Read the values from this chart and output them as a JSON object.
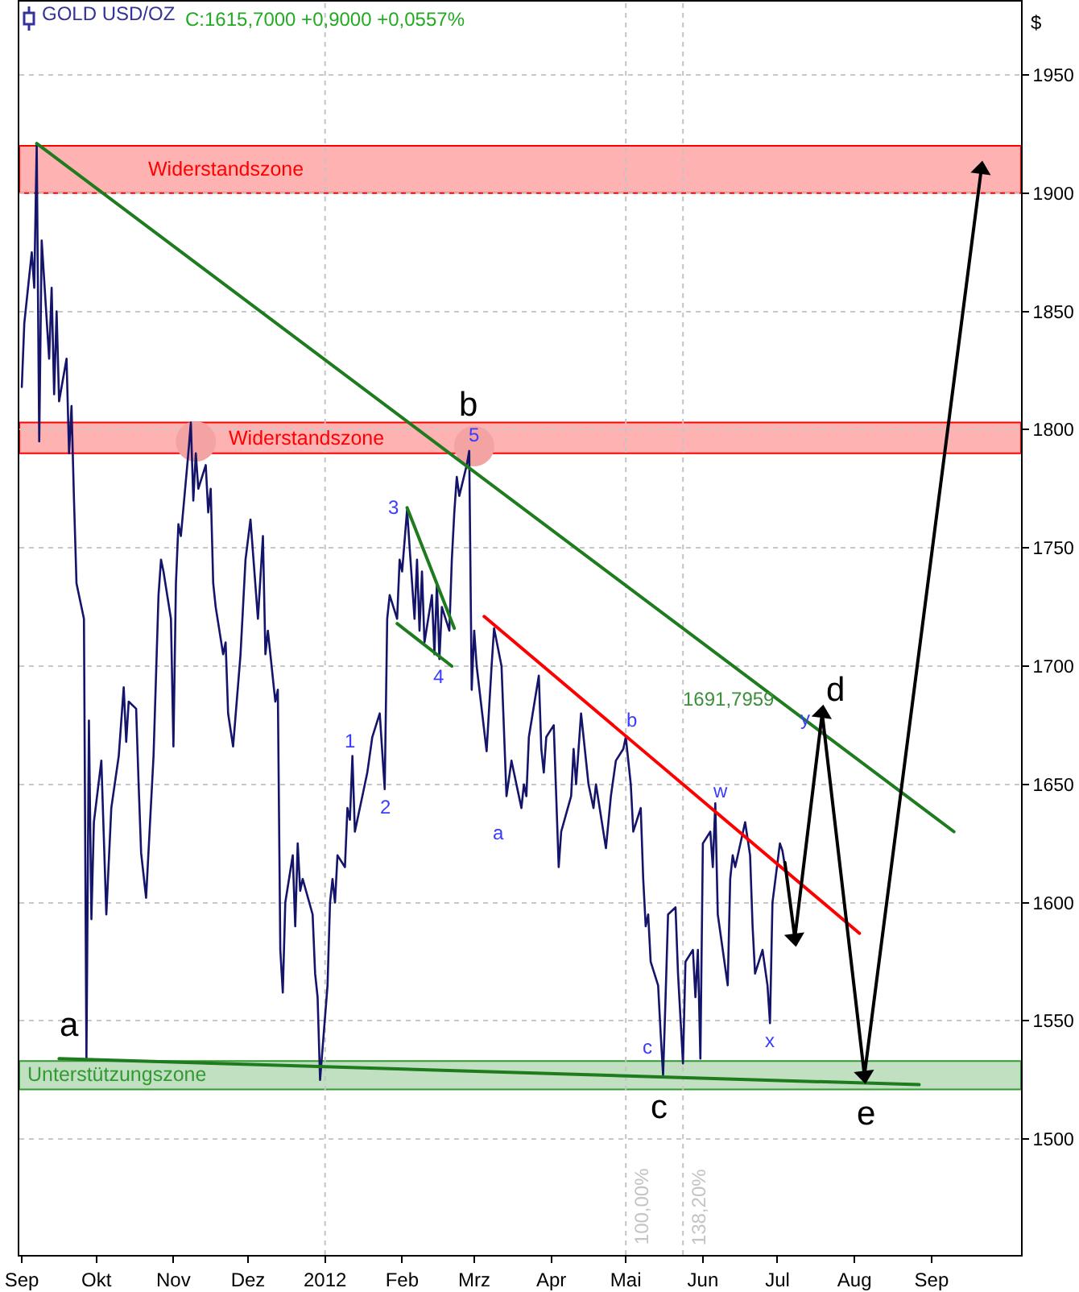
{
  "chart_data": {
    "type": "line",
    "title": "GOLD USD/OZ",
    "subtitle": "C:1615,7000 +0,9000 +0,0557%",
    "ylabel": "$",
    "xlim": [
      "2011-08-31",
      "2012-10-07"
    ],
    "xticks": [
      {
        "value": "2011-09-01",
        "label": "Sep"
      },
      {
        "value": "2011-10-01",
        "label": "Okt"
      },
      {
        "value": "2011-11-01",
        "label": "Nov"
      },
      {
        "value": "2011-12-01",
        "label": "Dez"
      },
      {
        "value": "2012-01-01",
        "label": "2012"
      },
      {
        "value": "2012-02-01",
        "label": "Feb"
      },
      {
        "value": "2012-03-01",
        "label": "Mrz"
      },
      {
        "value": "2012-04-01",
        "label": "Apr"
      },
      {
        "value": "2012-05-01",
        "label": "Mai"
      },
      {
        "value": "2012-06-01",
        "label": "Jun"
      },
      {
        "value": "2012-07-01",
        "label": "Jul"
      },
      {
        "value": "2012-08-01",
        "label": "Aug"
      },
      {
        "value": "2012-09-01",
        "label": "Sep"
      }
    ],
    "ylim": [
      1451,
      1981
    ],
    "yticks": [
      1500,
      1550,
      1600,
      1650,
      1700,
      1750,
      1800,
      1850,
      1900,
      1950
    ],
    "grid": "y",
    "series": [
      {
        "type": "scatter",
        "marker": "circle",
        "color": "#f4a3a3",
        "x": [
          "2011-11-10",
          "2012-03-01"
        ],
        "values": [
          1795,
          1793
        ]
      },
      {
        "color": "#14146b",
        "x": [
          "2011-09-01",
          "2011-09-02",
          "2011-09-05",
          "2011-09-06",
          "2011-09-07",
          "2011-09-08",
          "2011-09-09",
          "2011-09-12",
          "2011-09-13",
          "2011-09-14",
          "2011-09-15",
          "2011-09-16",
          "2011-09-19",
          "2011-09-20",
          "2011-09-21",
          "2011-09-22",
          "2011-09-23",
          "2011-09-26",
          "2011-09-27",
          "2011-09-28",
          "2011-09-29",
          "2011-09-30",
          "2011-10-03",
          "2011-10-05",
          "2011-10-07",
          "2011-10-10",
          "2011-10-12",
          "2011-10-13",
          "2011-10-14",
          "2011-10-17",
          "2011-10-18",
          "2011-10-19",
          "2011-10-21",
          "2011-10-24",
          "2011-10-26",
          "2011-10-27",
          "2011-10-28",
          "2011-10-31",
          "2011-11-01",
          "2011-11-02",
          "2011-11-03",
          "2011-11-04",
          "2011-11-07",
          "2011-11-08",
          "2011-11-09",
          "2011-11-10",
          "2011-11-11",
          "2011-11-14",
          "2011-11-15",
          "2011-11-16",
          "2011-11-17",
          "2011-11-18",
          "2011-11-21",
          "2011-11-22",
          "2011-11-23",
          "2011-11-25",
          "2011-11-28",
          "2011-11-30",
          "2011-12-02",
          "2011-12-05",
          "2011-12-07",
          "2011-12-08",
          "2011-12-09",
          "2011-12-12",
          "2011-12-13",
          "2011-12-14",
          "2011-12-15",
          "2011-12-16",
          "2011-12-19",
          "2011-12-20",
          "2011-12-21",
          "2011-12-22",
          "2011-12-23",
          "2011-12-27",
          "2011-12-28",
          "2011-12-29",
          "2011-12-30",
          "2012-01-02",
          "2012-01-03",
          "2012-01-04",
          "2012-01-05",
          "2012-01-06",
          "2012-01-09",
          "2012-01-10",
          "2012-01-11",
          "2012-01-12",
          "2012-01-13",
          "2012-01-16",
          "2012-01-18",
          "2012-01-20",
          "2012-01-23",
          "2012-01-25",
          "2012-01-26",
          "2012-01-27",
          "2012-01-30",
          "2012-01-31",
          "2012-02-01",
          "2012-02-03",
          "2012-02-06",
          "2012-02-07",
          "2012-02-08",
          "2012-02-09",
          "2012-02-10",
          "2012-02-13",
          "2012-02-14",
          "2012-02-15",
          "2012-02-16",
          "2012-02-17",
          "2012-02-20",
          "2012-02-21",
          "2012-02-22",
          "2012-02-23",
          "2012-02-24",
          "2012-02-27",
          "2012-02-28",
          "2012-02-29",
          "2012-03-01",
          "2012-03-02",
          "2012-03-06",
          "2012-03-08",
          "2012-03-09",
          "2012-03-12",
          "2012-03-14",
          "2012-03-16",
          "2012-03-20",
          "2012-03-21",
          "2012-03-22",
          "2012-03-23",
          "2012-03-27",
          "2012-03-28",
          "2012-03-29",
          "2012-03-30",
          "2012-04-02",
          "2012-04-04",
          "2012-04-05",
          "2012-04-09",
          "2012-04-10",
          "2012-04-11",
          "2012-04-13",
          "2012-04-16",
          "2012-04-18",
          "2012-04-19",
          "2012-04-23",
          "2012-04-25",
          "2012-04-27",
          "2012-04-30",
          "2012-05-01",
          "2012-05-03",
          "2012-05-04",
          "2012-05-07",
          "2012-05-08",
          "2012-05-09",
          "2012-05-10",
          "2012-05-11",
          "2012-05-14",
          "2012-05-15",
          "2012-05-16",
          "2012-05-17",
          "2012-05-18",
          "2012-05-21",
          "2012-05-22",
          "2012-05-24",
          "2012-05-25",
          "2012-05-28",
          "2012-05-29",
          "2012-05-30",
          "2012-05-31",
          "2012-06-01",
          "2012-06-04",
          "2012-06-05",
          "2012-06-06",
          "2012-06-07",
          "2012-06-11",
          "2012-06-12",
          "2012-06-13",
          "2012-06-14",
          "2012-06-18",
          "2012-06-20",
          "2012-06-21",
          "2012-06-22",
          "2012-06-25",
          "2012-06-27",
          "2012-06-28",
          "2012-06-29",
          "2012-07-02",
          "2012-07-03",
          "2012-07-04"
        ],
        "values": [
          1818,
          1845,
          1875,
          1860,
          1921,
          1795,
          1880,
          1830,
          1860,
          1815,
          1850,
          1812,
          1830,
          1790,
          1810,
          1770,
          1735,
          1720,
          1534,
          1677,
          1593,
          1634,
          1660,
          1595,
          1640,
          1662,
          1691,
          1668,
          1685,
          1682,
          1650,
          1621,
          1602,
          1662,
          1730,
          1745,
          1740,
          1720,
          1666,
          1735,
          1760,
          1755,
          1790,
          1803,
          1770,
          1790,
          1775,
          1785,
          1765,
          1775,
          1735,
          1725,
          1705,
          1710,
          1680,
          1666,
          1705,
          1745,
          1762,
          1720,
          1755,
          1705,
          1715,
          1685,
          1690,
          1580,
          1562,
          1600,
          1620,
          1590,
          1625,
          1605,
          1610,
          1595,
          1570,
          1560,
          1525,
          1565,
          1600,
          1610,
          1600,
          1620,
          1615,
          1640,
          1635,
          1662,
          1630,
          1645,
          1655,
          1670,
          1680,
          1648,
          1720,
          1730,
          1720,
          1745,
          1740,
          1766,
          1720,
          1745,
          1715,
          1740,
          1710,
          1730,
          1705,
          1735,
          1703,
          1725,
          1715,
          1745,
          1765,
          1780,
          1772,
          1785,
          1791,
          1690,
          1715,
          1700,
          1664,
          1700,
          1716,
          1700,
          1645,
          1660,
          1640,
          1650,
          1645,
          1670,
          1696,
          1665,
          1655,
          1670,
          1675,
          1615,
          1630,
          1645,
          1665,
          1650,
          1680,
          1650,
          1640,
          1650,
          1623,
          1645,
          1660,
          1665,
          1670,
          1650,
          1630,
          1640,
          1610,
          1590,
          1595,
          1575,
          1565,
          1545,
          1527,
          1560,
          1595,
          1598,
          1570,
          1532,
          1575,
          1580,
          1560,
          1580,
          1534,
          1625,
          1630,
          1615,
          1642,
          1595,
          1565,
          1610,
          1620,
          1615,
          1634,
          1620,
          1590,
          1570,
          1580,
          1565,
          1549,
          1600,
          1625,
          1622,
          1615.7
        ]
      },
      {
        "color": "#1e7b1e",
        "x": [
          "2011-09-07",
          "2012-09-10"
        ],
        "values": [
          1921,
          1630
        ]
      },
      {
        "color": "#ff0000",
        "x": [
          "2012-03-05",
          "2012-08-03"
        ],
        "values": [
          1721,
          1587
        ]
      },
      {
        "color": "#1e7b1e",
        "x": [
          "2012-02-03",
          "2012-02-22"
        ],
        "values": [
          1767,
          1716
        ]
      },
      {
        "color": "#1e7b1e",
        "x": [
          "2012-01-30",
          "2012-02-21"
        ],
        "values": [
          1718,
          1700
        ]
      },
      {
        "color": "#1e7b1e",
        "x": [
          "2011-09-16",
          "2012-08-27"
        ],
        "values": [
          1534,
          1523
        ]
      },
      {
        "marker": "triangle",
        "color": "#000000",
        "x": [
          "2012-07-04",
          "2012-07-08",
          "2012-07-19",
          "2012-08-05",
          "2012-09-21"
        ],
        "values": [
          1617,
          1585,
          1680,
          1527,
          1910
        ]
      }
    ],
    "bands": [
      {
        "axis": "y",
        "from": 1900,
        "to": 1920,
        "label": "Widerstandszone",
        "color": "#ff0000"
      },
      {
        "axis": "y",
        "from": 1790,
        "to": 1803,
        "label": "Widerstandszone",
        "color": "#ff0000"
      },
      {
        "axis": "y",
        "from": 1521,
        "to": 1533,
        "label": "Unterstützungszone",
        "color": "#339933"
      }
    ],
    "ref_lines": [
      {
        "axis": "x",
        "value": "2012-01-01",
        "color": "#c4c4c4",
        "line_style": "dotted"
      },
      {
        "axis": "x",
        "value": "2012-05-01",
        "label": "100,00%",
        "color": "#c4c4c4",
        "line_style": "dotted"
      },
      {
        "axis": "x",
        "value": "2012-05-24",
        "label": "138,20%",
        "color": "#c4c4c4",
        "line_style": "dotted"
      }
    ],
    "annotations": [
      {
        "text": "a",
        "x": "2011-09-27",
        "y": 1534
      },
      {
        "text": "b",
        "x": "2012-02-28",
        "y": 1791
      },
      {
        "text": "c",
        "x": "2012-05-16",
        "y": 1527
      },
      {
        "text": "d",
        "x": "2012-07-19",
        "y": 1680
      },
      {
        "text": "e",
        "x": "2012-08-05",
        "y": 1527
      },
      {
        "text": "1",
        "x": "2012-01-12",
        "y": 1662
      },
      {
        "text": "2",
        "x": "2012-01-25",
        "y": 1648
      },
      {
        "text": "3",
        "x": "2012-02-03",
        "y": 1766
      },
      {
        "text": "4",
        "x": "2012-02-16",
        "y": 1703
      },
      {
        "text": "5",
        "x": "2012-02-28",
        "y": 1791
      },
      {
        "text": "a",
        "x": "2012-03-14",
        "y": 1645
      },
      {
        "text": "b",
        "x": "2012-05-01",
        "y": 1670
      },
      {
        "text": "c",
        "x": "2012-05-16",
        "y": 1527
      },
      {
        "text": "w",
        "x": "2012-06-06",
        "y": 1642
      },
      {
        "text": "x",
        "x": "2012-06-28",
        "y": 1549
      },
      {
        "text": "y",
        "x": "2012-07-19",
        "y": 1680
      },
      {
        "text": "1691,7959",
        "x": "2012-07-19",
        "y": 1680
      }
    ]
  }
}
